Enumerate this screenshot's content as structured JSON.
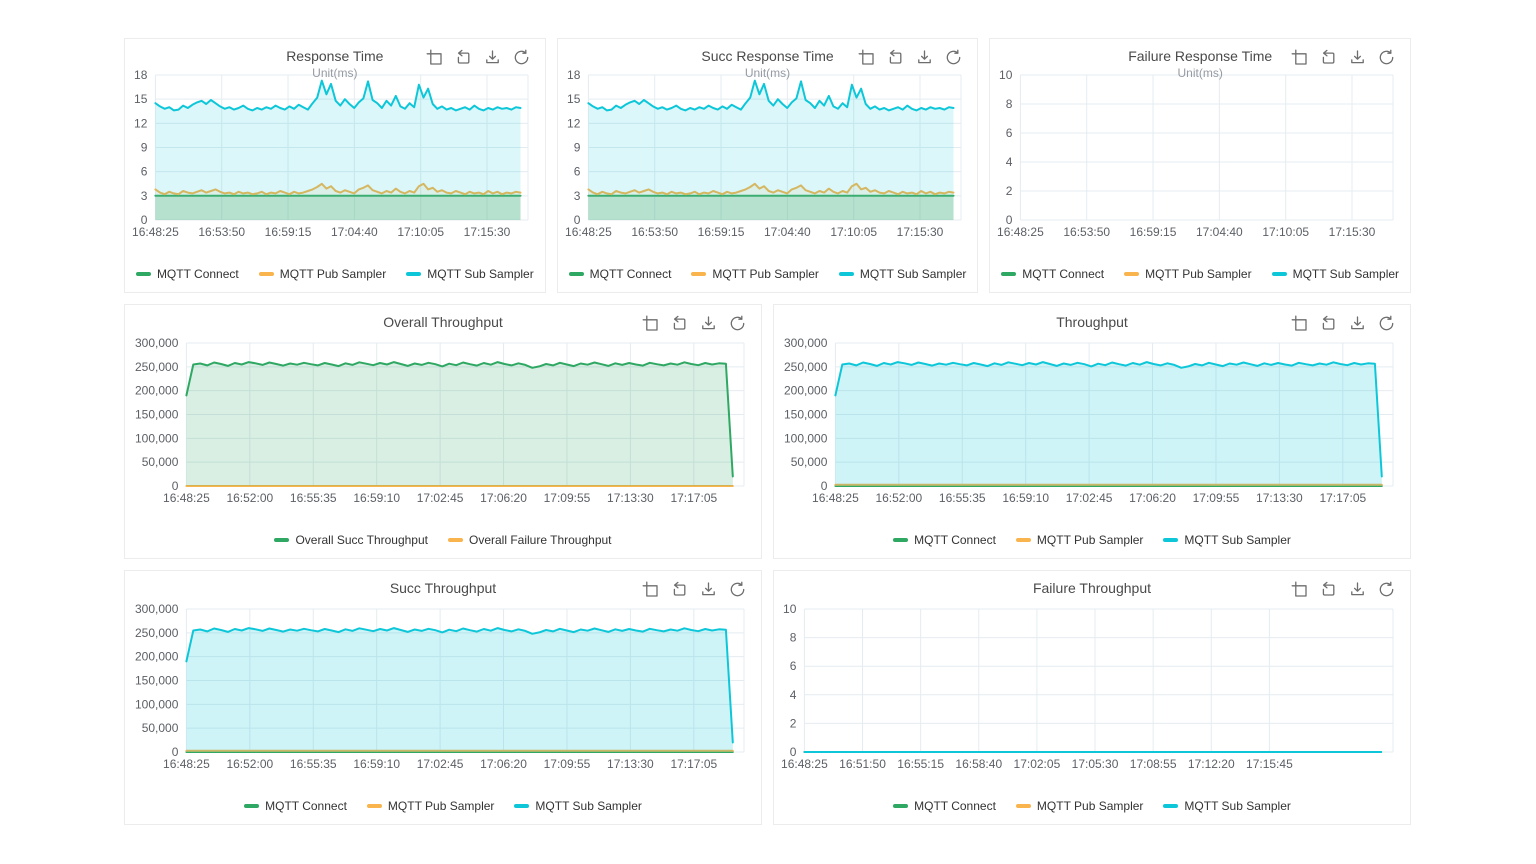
{
  "colors": {
    "mqtt_connect": "#2fa863",
    "mqtt_pub_sampler": "#f9b44d",
    "mqtt_sub_sampler": "#0dc7d9",
    "grid_line": "#e4ecf1",
    "axis_label": "#5c6066",
    "card_border": "#ececec"
  },
  "toolbox": {
    "buttons": [
      "data-zoom",
      "zoom-reset",
      "save-image",
      "refresh"
    ]
  },
  "chart_data": [
    {
      "type": "line",
      "title": "Response Time",
      "subtitle": "Unit(ms)",
      "y_ticks": [
        "0",
        "3",
        "6",
        "9",
        "12",
        "15",
        "18"
      ],
      "y_max": 18,
      "x_labels": [
        "16:48:25",
        "16:53:50",
        "16:59:15",
        "17:04:40",
        "17:10:05",
        "17:15:30"
      ],
      "x_end_frac": 0.89,
      "x_data_end_frac": 0.98,
      "legend": [
        {
          "label": "MQTT Connect",
          "color": "#2fa863"
        },
        {
          "label": "MQTT Pub Sampler",
          "color": "#f9b44d"
        },
        {
          "label": "MQTT Sub Sampler",
          "color": "#0dc7d9"
        }
      ],
      "series": [
        {
          "name": "MQTT Connect",
          "color": "#2fa863",
          "fill": "rgba(47,168,99,0.22)",
          "values": 3
        },
        {
          "name": "MQTT Pub Sampler",
          "color": "#f9b44d",
          "fill": "rgba(250,180,77,0.10)",
          "values": [
            3.8,
            3.4,
            3.2,
            3.5,
            3.3,
            3.2,
            3.6,
            3.4,
            3.3,
            3.5,
            3.7,
            3.4,
            3.6,
            3.8,
            3.5,
            3.3,
            3.4,
            3.2,
            3.5,
            3.3,
            3.4,
            3.2,
            3.3,
            3.5,
            3.2,
            3.4,
            3.3,
            3.6,
            3.4,
            3.2,
            3.5,
            3.3,
            3.4,
            3.6,
            3.8,
            4.1,
            4.5,
            3.9,
            4.2,
            3.6,
            3.4,
            3.7,
            3.5,
            3.3,
            3.8,
            4.0,
            4.3,
            3.7,
            3.5,
            3.3,
            3.6,
            3.4,
            3.9,
            3.5,
            3.3,
            3.6,
            3.4,
            4.2,
            4.5,
            3.8,
            4.0,
            3.5,
            3.7,
            3.4,
            3.3,
            3.6,
            3.4,
            3.2,
            3.5,
            3.3,
            3.4,
            3.2,
            3.6,
            3.3,
            3.5,
            3.2,
            3.4,
            3.3,
            3.5,
            3.4
          ]
        },
        {
          "name": "MQTT Sub Sampler",
          "color": "#0dc7d9",
          "fill": "rgba(13,199,217,0.15)",
          "values": [
            14.5,
            14.1,
            13.8,
            14.0,
            13.6,
            13.7,
            14.2,
            13.9,
            14.3,
            14.6,
            14.8,
            14.4,
            14.9,
            14.5,
            14.1,
            13.8,
            14.0,
            13.7,
            13.9,
            14.2,
            13.8,
            13.6,
            13.9,
            13.7,
            14.0,
            13.8,
            14.2,
            13.9,
            13.7,
            14.1,
            13.8,
            14.3,
            14.0,
            13.7,
            14.5,
            15.2,
            17.3,
            15.6,
            16.9,
            14.8,
            14.2,
            15.0,
            14.4,
            13.9,
            14.6,
            15.1,
            17.2,
            14.9,
            14.5,
            13.9,
            14.8,
            14.2,
            15.4,
            14.1,
            13.8,
            14.5,
            14.0,
            16.8,
            15.2,
            16.3,
            14.4,
            13.8,
            14.1,
            13.7,
            13.9,
            13.6,
            13.8,
            14.0,
            13.7,
            14.2,
            13.8,
            13.6,
            13.9,
            13.7,
            14.0,
            13.8,
            13.9,
            13.7,
            14.0,
            13.9
          ]
        }
      ]
    },
    {
      "type": "line",
      "title": "Succ Response Time",
      "subtitle": "Unit(ms)",
      "y_ticks": [
        "0",
        "3",
        "6",
        "9",
        "12",
        "15",
        "18"
      ],
      "y_max": 18,
      "x_labels": [
        "16:48:25",
        "16:53:50",
        "16:59:15",
        "17:04:40",
        "17:10:05",
        "17:15:30"
      ],
      "x_end_frac": 0.89,
      "x_data_end_frac": 0.98,
      "legend": [
        {
          "label": "MQTT Connect",
          "color": "#2fa863"
        },
        {
          "label": "MQTT Pub Sampler",
          "color": "#f9b44d"
        },
        {
          "label": "MQTT Sub Sampler",
          "color": "#0dc7d9"
        }
      ],
      "series": [
        {
          "name": "MQTT Connect",
          "color": "#2fa863",
          "fill": "rgba(47,168,99,0.22)",
          "values": 3
        },
        {
          "name": "MQTT Pub Sampler",
          "color": "#f9b44d",
          "fill": "rgba(250,180,77,0.10)",
          "values": [
            3.8,
            3.4,
            3.2,
            3.5,
            3.3,
            3.2,
            3.6,
            3.4,
            3.3,
            3.5,
            3.7,
            3.4,
            3.6,
            3.8,
            3.5,
            3.3,
            3.4,
            3.2,
            3.5,
            3.3,
            3.4,
            3.2,
            3.3,
            3.5,
            3.2,
            3.4,
            3.3,
            3.6,
            3.4,
            3.2,
            3.5,
            3.3,
            3.4,
            3.6,
            3.8,
            4.1,
            4.5,
            3.9,
            4.2,
            3.6,
            3.4,
            3.7,
            3.5,
            3.3,
            3.8,
            4.0,
            4.3,
            3.7,
            3.5,
            3.3,
            3.6,
            3.4,
            3.9,
            3.5,
            3.3,
            3.6,
            3.4,
            4.2,
            4.5,
            3.8,
            4.0,
            3.5,
            3.7,
            3.4,
            3.3,
            3.6,
            3.4,
            3.2,
            3.5,
            3.3,
            3.4,
            3.2,
            3.6,
            3.3,
            3.5,
            3.2,
            3.4,
            3.3,
            3.5,
            3.4
          ]
        },
        {
          "name": "MQTT Sub Sampler",
          "color": "#0dc7d9",
          "fill": "rgba(13,199,217,0.15)",
          "values": [
            14.5,
            14.1,
            13.8,
            14.0,
            13.6,
            13.7,
            14.2,
            13.9,
            14.3,
            14.6,
            14.8,
            14.4,
            14.9,
            14.5,
            14.1,
            13.8,
            14.0,
            13.7,
            13.9,
            14.2,
            13.8,
            13.6,
            13.9,
            13.7,
            14.0,
            13.8,
            14.2,
            13.9,
            13.7,
            14.1,
            13.8,
            14.3,
            14.0,
            13.7,
            14.5,
            15.2,
            17.3,
            15.6,
            16.9,
            14.8,
            14.2,
            15.0,
            14.4,
            13.9,
            14.6,
            15.1,
            17.2,
            14.9,
            14.5,
            13.9,
            14.8,
            14.2,
            15.4,
            14.1,
            13.8,
            14.5,
            14.0,
            16.8,
            15.2,
            16.3,
            14.4,
            13.8,
            14.1,
            13.7,
            13.9,
            13.6,
            13.8,
            14.0,
            13.7,
            14.2,
            13.8,
            13.6,
            13.9,
            13.7,
            14.0,
            13.8,
            13.9,
            13.7,
            14.0,
            13.9
          ]
        }
      ]
    },
    {
      "type": "line",
      "title": "Failure Response Time",
      "subtitle": "Unit(ms)",
      "y_ticks": [
        "0",
        "2",
        "4",
        "6",
        "8",
        "10"
      ],
      "y_max": 10,
      "x_labels": [
        "16:48:25",
        "16:53:50",
        "16:59:15",
        "17:04:40",
        "17:10:05",
        "17:15:30"
      ],
      "x_end_frac": 0.89,
      "x_data_end_frac": 0.98,
      "legend": [
        {
          "label": "MQTT Connect",
          "color": "#2fa863"
        },
        {
          "label": "MQTT Pub Sampler",
          "color": "#f9b44d"
        },
        {
          "label": "MQTT Sub Sampler",
          "color": "#0dc7d9"
        }
      ],
      "series": [
        {
          "name": "MQTT Connect",
          "color": "#2fa863",
          "fill": null,
          "values": []
        },
        {
          "name": "MQTT Pub Sampler",
          "color": "#f9b44d",
          "fill": null,
          "values": []
        },
        {
          "name": "MQTT Sub Sampler",
          "color": "#0dc7d9",
          "fill": null,
          "values": []
        }
      ]
    },
    {
      "type": "line",
      "title": "Overall Throughput",
      "subtitle": "",
      "y_ticks": [
        "0",
        "50,000",
        "100,000",
        "150,000",
        "200,000",
        "250,000",
        "300,000"
      ],
      "y_max": 300000,
      "x_labels": [
        "16:48:25",
        "16:52:00",
        "16:55:35",
        "16:59:10",
        "17:02:45",
        "17:06:20",
        "17:09:55",
        "17:13:30",
        "17:17:05"
      ],
      "x_end_frac": 0.91,
      "x_data_end_frac": 0.98,
      "legend": [
        {
          "label": "Overall Succ Throughput",
          "color": "#2fa863"
        },
        {
          "label": "Overall Failure Throughput",
          "color": "#f9b44d"
        }
      ],
      "series": [
        {
          "name": "Overall Failure Throughput",
          "color": "#f9b44d",
          "fill": null,
          "values": 0
        },
        {
          "name": "Overall Succ Throughput",
          "color": "#2fa863",
          "fill": "rgba(47,168,99,0.18)",
          "values": [
            190000,
            255000,
            257000,
            253000,
            259000,
            256000,
            252000,
            258000,
            255000,
            260000,
            257500,
            254000,
            259000,
            256000,
            252500,
            257000,
            254500,
            258500,
            255500,
            253000,
            258000,
            255000,
            251500,
            257500,
            254000,
            259500,
            256500,
            253500,
            258000,
            255000,
            260000,
            256000,
            252000,
            257000,
            254000,
            258500,
            255500,
            251000,
            256500,
            253500,
            259000,
            255500,
            252500,
            258000,
            254500,
            260000,
            256000,
            253000,
            257500,
            254000,
            248000,
            251000,
            256000,
            253000,
            258500,
            255000,
            251500,
            257000,
            254500,
            259000,
            255500,
            252000,
            257500,
            254000,
            258000,
            255000,
            252500,
            258500,
            255500,
            253000,
            257000,
            254500,
            259500,
            256000,
            253500,
            258000,
            255000,
            257500,
            256500,
            20000
          ]
        }
      ]
    },
    {
      "type": "line",
      "title": "Throughput",
      "subtitle": "",
      "y_ticks": [
        "0",
        "50,000",
        "100,000",
        "150,000",
        "200,000",
        "250,000",
        "300,000"
      ],
      "y_max": 300000,
      "x_labels": [
        "16:48:25",
        "16:52:00",
        "16:55:35",
        "16:59:10",
        "17:02:45",
        "17:06:20",
        "17:09:55",
        "17:13:30",
        "17:17:05"
      ],
      "x_end_frac": 0.91,
      "x_data_end_frac": 0.98,
      "legend": [
        {
          "label": "MQTT Connect",
          "color": "#2fa863"
        },
        {
          "label": "MQTT Pub Sampler",
          "color": "#f9b44d"
        },
        {
          "label": "MQTT Sub Sampler",
          "color": "#0dc7d9"
        }
      ],
      "series": [
        {
          "name": "MQTT Connect",
          "color": "#2fa863",
          "fill": null,
          "values": 0
        },
        {
          "name": "MQTT Pub Sampler",
          "color": "#f9b44d",
          "fill": null,
          "values": 2600
        },
        {
          "name": "MQTT Sub Sampler",
          "color": "#0dc7d9",
          "fill": "rgba(13,199,217,0.20)",
          "values": [
            190000,
            255000,
            257000,
            253000,
            259000,
            256000,
            252000,
            258000,
            255000,
            260000,
            257500,
            254000,
            259000,
            256000,
            252500,
            257000,
            254500,
            258500,
            255500,
            253000,
            258000,
            255000,
            251500,
            257500,
            254000,
            259500,
            256500,
            253500,
            258000,
            255000,
            260000,
            256000,
            252000,
            257000,
            254000,
            258500,
            255500,
            251000,
            256500,
            253500,
            259000,
            255500,
            252500,
            258000,
            254500,
            260000,
            256000,
            253000,
            257500,
            254000,
            248000,
            251000,
            256000,
            253000,
            258500,
            255000,
            251500,
            257000,
            254500,
            259000,
            255500,
            252000,
            257500,
            254000,
            258000,
            255000,
            252500,
            258500,
            255500,
            253000,
            257000,
            254500,
            259500,
            256000,
            253500,
            258000,
            255000,
            257500,
            256500,
            20000
          ]
        }
      ]
    },
    {
      "type": "line",
      "title": "Succ Throughput",
      "subtitle": "",
      "y_ticks": [
        "0",
        "50,000",
        "100,000",
        "150,000",
        "200,000",
        "250,000",
        "300,000"
      ],
      "y_max": 300000,
      "x_labels": [
        "16:48:25",
        "16:52:00",
        "16:55:35",
        "16:59:10",
        "17:02:45",
        "17:06:20",
        "17:09:55",
        "17:13:30",
        "17:17:05"
      ],
      "x_end_frac": 0.91,
      "x_data_end_frac": 0.98,
      "legend": [
        {
          "label": "MQTT Connect",
          "color": "#2fa863"
        },
        {
          "label": "MQTT Pub Sampler",
          "color": "#f9b44d"
        },
        {
          "label": "MQTT Sub Sampler",
          "color": "#0dc7d9"
        }
      ],
      "series": [
        {
          "name": "MQTT Connect",
          "color": "#2fa863",
          "fill": null,
          "values": 0
        },
        {
          "name": "MQTT Pub Sampler",
          "color": "#f9b44d",
          "fill": null,
          "values": 2600
        },
        {
          "name": "MQTT Sub Sampler",
          "color": "#0dc7d9",
          "fill": "rgba(13,199,217,0.20)",
          "values": [
            190000,
            255000,
            257000,
            253000,
            259000,
            256000,
            252000,
            258000,
            255000,
            260000,
            257500,
            254000,
            259000,
            256000,
            252500,
            257000,
            254500,
            258500,
            255500,
            253000,
            258000,
            255000,
            251500,
            257500,
            254000,
            259500,
            256500,
            253500,
            258000,
            255000,
            260000,
            256000,
            252000,
            257000,
            254000,
            258500,
            255500,
            251000,
            256500,
            253500,
            259000,
            255500,
            252500,
            258000,
            254500,
            260000,
            256000,
            253000,
            257500,
            254000,
            248000,
            251000,
            256000,
            253000,
            258500,
            255000,
            251500,
            257000,
            254500,
            259000,
            255500,
            252000,
            257500,
            254000,
            258000,
            255000,
            252500,
            258500,
            255500,
            253000,
            257000,
            254500,
            259500,
            256000,
            253500,
            258000,
            255000,
            257500,
            256500,
            20000
          ]
        }
      ]
    },
    {
      "type": "line",
      "title": "Failure Throughput",
      "subtitle": "",
      "y_ticks": [
        "0",
        "2",
        "4",
        "6",
        "8",
        "10"
      ],
      "y_max": 10,
      "x_labels": [
        "16:48:25",
        "16:51:50",
        "16:55:15",
        "16:58:40",
        "17:02:05",
        "17:05:30",
        "17:08:55",
        "17:12:20",
        "17:15:45"
      ],
      "x_end_frac": 0.79,
      "x_data_end_frac": 0.98,
      "legend": [
        {
          "label": "MQTT Connect",
          "color": "#2fa863"
        },
        {
          "label": "MQTT Pub Sampler",
          "color": "#f9b44d"
        },
        {
          "label": "MQTT Sub Sampler",
          "color": "#0dc7d9"
        }
      ],
      "series": [
        {
          "name": "MQTT Connect",
          "color": "#2fa863",
          "fill": null,
          "values": 0
        },
        {
          "name": "MQTT Pub Sampler",
          "color": "#f9b44d",
          "fill": null,
          "values": 0
        },
        {
          "name": "MQTT Sub Sampler",
          "color": "#0dc7d9",
          "fill": null,
          "values": 0
        }
      ]
    }
  ]
}
